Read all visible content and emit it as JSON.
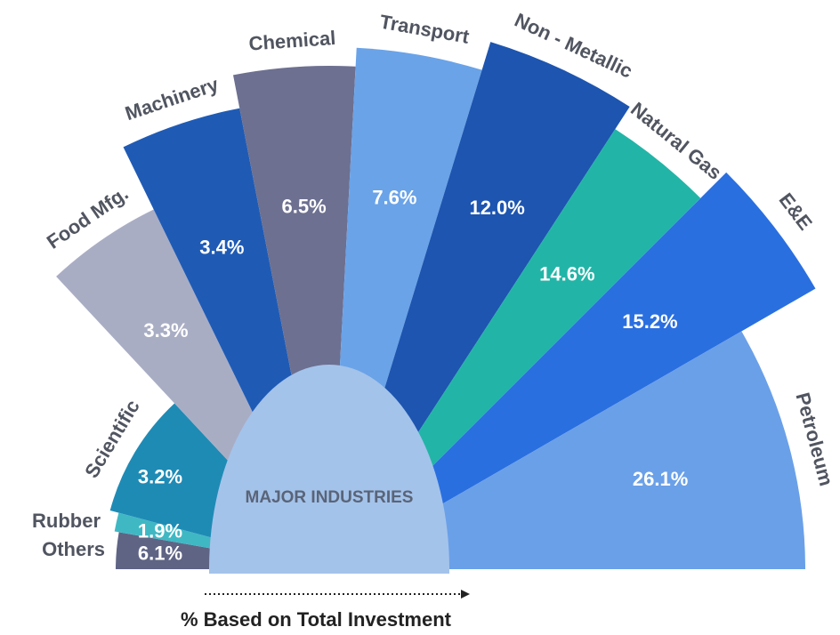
{
  "chart_data": {
    "type": "rose",
    "categories": [
      "Others",
      "Rubber",
      "Scientific",
      "Food Mfg.",
      "Machinery",
      "Chemical",
      "Transport",
      "Non - Metallic",
      "Natural Gas",
      "E&E",
      "Petroleum"
    ],
    "values": [
      6.1,
      1.9,
      3.2,
      3.3,
      3.4,
      6.5,
      7.6,
      12.0,
      14.6,
      15.2,
      26.1
    ],
    "value_labels": [
      "6.1%",
      "1.9%",
      "3.2%",
      "3.3%",
      "3.4%",
      "6.5%",
      "7.6%",
      "12.0%",
      "14.6%",
      "15.2%",
      "26.1%"
    ],
    "colors": [
      "#5f6485",
      "#3fb8c4",
      "#1e8bb5",
      "#a9adc4",
      "#1f5bb5",
      "#6d7090",
      "#6aa3e8",
      "#1d55b0",
      "#22b5a7",
      "#2a6fe0",
      "#6aa0e8"
    ],
    "center_label": "MAJOR INDUSTRIES",
    "x_label": "% Based on Total Investment"
  }
}
